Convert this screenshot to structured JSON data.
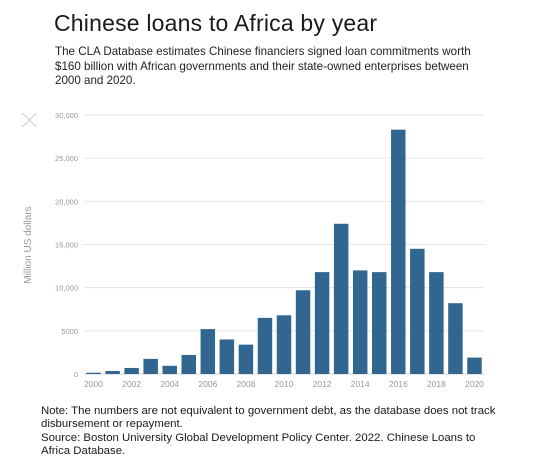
{
  "header": {
    "title": "Chinese loans to Africa by year",
    "subtitle": "The CLA Database estimates Chinese financiers signed loan commitments worth $160 billion with African governments and their state-owned enterprises between 2000 and 2020."
  },
  "footer": {
    "note": "Note: The numbers are not equivalent to government debt, as the database does not track disbursement or repayment.",
    "source": "Source: Boston University Global Development Policy Center. 2022. Chinese Loans to Africa Database."
  },
  "colors": {
    "bar": "#30668f",
    "grid": "#e6e6e6",
    "axis_text": "#999999"
  },
  "icons": {
    "close": "close-icon"
  },
  "chart_data": {
    "type": "bar",
    "title": "Chinese loans to Africa by year",
    "ylabel": "Million US dollars",
    "ylim": [
      0,
      30000
    ],
    "yticks": [
      0,
      5000,
      10000,
      15000,
      20000,
      25000,
      30000
    ],
    "ytick_labels": [
      "0",
      "5000",
      "10,000",
      "15,000",
      "20,000",
      "25,000",
      "30,000"
    ],
    "xtick_labels": [
      "2000",
      "2002",
      "2004",
      "2006",
      "2008",
      "2010",
      "2012",
      "2014",
      "2016",
      "2018",
      "2020"
    ],
    "grid": true,
    "categories": [
      "2000",
      "2001",
      "2002",
      "2003",
      "2004",
      "2005",
      "2006",
      "2007",
      "2008",
      "2009",
      "2010",
      "2011",
      "2012",
      "2013",
      "2014",
      "2015",
      "2016",
      "2017",
      "2018",
      "2019",
      "2020"
    ],
    "values": [
      150,
      350,
      700,
      1750,
      950,
      2200,
      5200,
      4000,
      3400,
      6500,
      6800,
      9700,
      11800,
      17400,
      12000,
      11800,
      28300,
      14500,
      11800,
      8200,
      1900
    ]
  }
}
